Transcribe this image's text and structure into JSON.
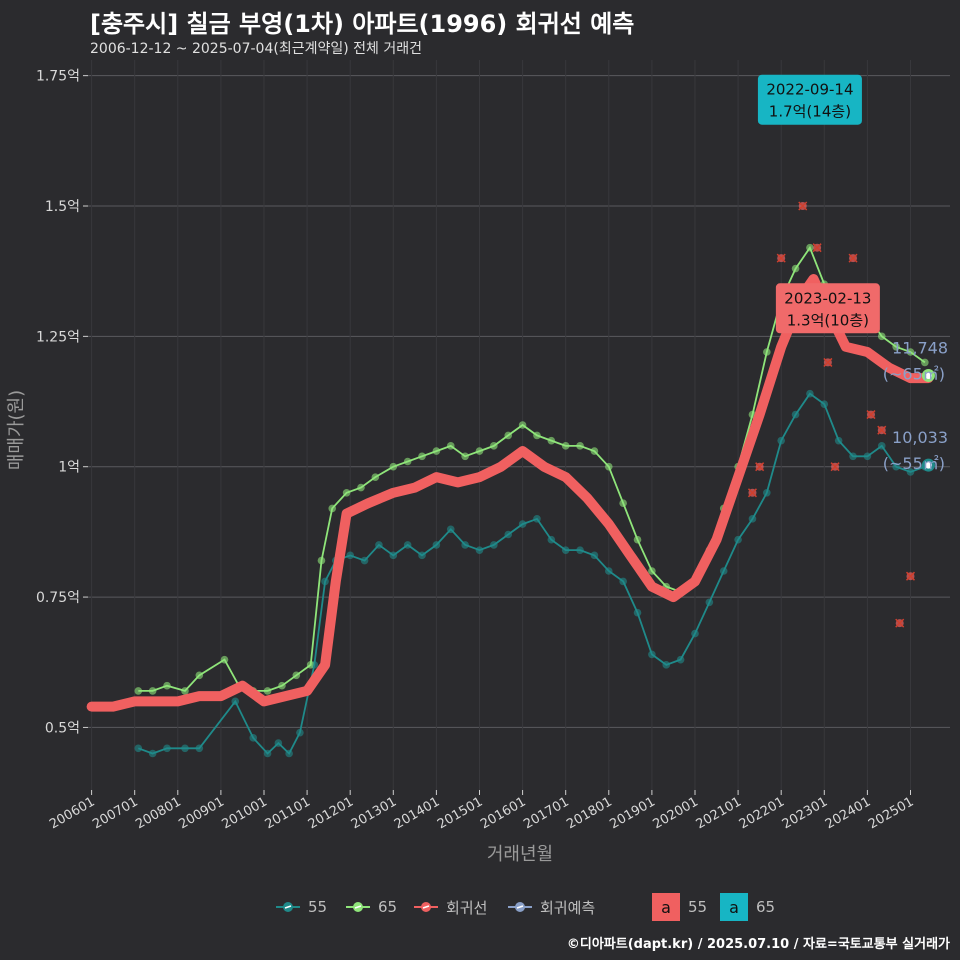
{
  "header": {
    "title": "[충주시] 칠금 부영(1차) 아파트(1996) 회귀선 예측",
    "subtitle": "2006-12-12 ~ 2025-07-04(최근계약일) 전체 거래건"
  },
  "footer": {
    "credit": "©디아파트(dapt.kr) / 2025.07.10 / 자료=국토교통부 실거래가"
  },
  "colors": {
    "s55": "#1f8a8a",
    "s65": "#8fe57a",
    "reg": "#f06060",
    "pred": "#8aa0c8",
    "cross": "#d0402e"
  },
  "chart_data": {
    "type": "scatter",
    "xlabel": "거래년월",
    "ylabel": "매매가(원)",
    "ylim": [
      0.38,
      1.78
    ],
    "yticks": [
      {
        "v": 0.5,
        "label": "0.5억"
      },
      {
        "v": 0.75,
        "label": "0.75억"
      },
      {
        "v": 1.0,
        "label": "1억"
      },
      {
        "v": 1.25,
        "label": "1.25억"
      },
      {
        "v": 1.5,
        "label": "1.5억"
      },
      {
        "v": 1.75,
        "label": "1.75억"
      }
    ],
    "xlim": [
      "2005-12-01",
      "2025-12-01"
    ],
    "xticks": [
      "200601",
      "200701",
      "200801",
      "200901",
      "201001",
      "201101",
      "201201",
      "201301",
      "201401",
      "201501",
      "201601",
      "201701",
      "201801",
      "201901",
      "202001",
      "202101",
      "202201",
      "202301",
      "202401",
      "202501"
    ],
    "series": [
      {
        "name": "55",
        "points": [
          [
            "2007-02",
            0.46
          ],
          [
            "2007-06",
            0.45
          ],
          [
            "2007-10",
            0.46
          ],
          [
            "2008-03",
            0.46
          ],
          [
            "2008-07",
            0.46
          ],
          [
            "2009-05",
            0.55
          ],
          [
            "2009-10",
            0.48
          ],
          [
            "2010-02",
            0.45
          ],
          [
            "2010-05",
            0.47
          ],
          [
            "2010-08",
            0.45
          ],
          [
            "2010-11",
            0.49
          ],
          [
            "2011-03",
            0.62
          ],
          [
            "2011-06",
            0.78
          ],
          [
            "2011-09",
            0.82
          ],
          [
            "2012-01",
            0.83
          ],
          [
            "2012-05",
            0.82
          ],
          [
            "2012-09",
            0.85
          ],
          [
            "2013-01",
            0.83
          ],
          [
            "2013-05",
            0.85
          ],
          [
            "2013-09",
            0.83
          ],
          [
            "2014-01",
            0.85
          ],
          [
            "2014-05",
            0.88
          ],
          [
            "2014-09",
            0.85
          ],
          [
            "2015-01",
            0.84
          ],
          [
            "2015-05",
            0.85
          ],
          [
            "2015-09",
            0.87
          ],
          [
            "2016-01",
            0.89
          ],
          [
            "2016-05",
            0.9
          ],
          [
            "2016-09",
            0.86
          ],
          [
            "2017-01",
            0.84
          ],
          [
            "2017-05",
            0.84
          ],
          [
            "2017-09",
            0.83
          ],
          [
            "2018-01",
            0.8
          ],
          [
            "2018-05",
            0.78
          ],
          [
            "2018-09",
            0.72
          ],
          [
            "2019-01",
            0.64
          ],
          [
            "2019-05",
            0.62
          ],
          [
            "2019-09",
            0.63
          ],
          [
            "2020-01",
            0.68
          ],
          [
            "2020-05",
            0.74
          ],
          [
            "2020-09",
            0.8
          ],
          [
            "2021-01",
            0.86
          ],
          [
            "2021-05",
            0.9
          ],
          [
            "2021-09",
            0.95
          ],
          [
            "2022-01",
            1.05
          ],
          [
            "2022-05",
            1.1
          ],
          [
            "2022-09",
            1.14
          ],
          [
            "2023-01",
            1.12
          ],
          [
            "2023-05",
            1.05
          ],
          [
            "2023-09",
            1.02
          ],
          [
            "2024-01",
            1.02
          ],
          [
            "2024-05",
            1.04
          ],
          [
            "2024-09",
            1.0
          ],
          [
            "2025-01",
            0.99
          ],
          [
            "2025-05",
            1.0
          ]
        ]
      },
      {
        "name": "65",
        "points": [
          [
            "2007-02",
            0.57
          ],
          [
            "2007-06",
            0.57
          ],
          [
            "2007-10",
            0.58
          ],
          [
            "2008-03",
            0.57
          ],
          [
            "2008-07",
            0.6
          ],
          [
            "2009-02",
            0.63
          ],
          [
            "2009-06",
            0.58
          ],
          [
            "2009-10",
            0.57
          ],
          [
            "2010-02",
            0.57
          ],
          [
            "2010-06",
            0.58
          ],
          [
            "2010-10",
            0.6
          ],
          [
            "2011-02",
            0.62
          ],
          [
            "2011-05",
            0.82
          ],
          [
            "2011-08",
            0.92
          ],
          [
            "2011-12",
            0.95
          ],
          [
            "2012-04",
            0.96
          ],
          [
            "2012-08",
            0.98
          ],
          [
            "2013-01",
            1.0
          ],
          [
            "2013-05",
            1.01
          ],
          [
            "2013-09",
            1.02
          ],
          [
            "2014-01",
            1.03
          ],
          [
            "2014-05",
            1.04
          ],
          [
            "2014-09",
            1.02
          ],
          [
            "2015-01",
            1.03
          ],
          [
            "2015-05",
            1.04
          ],
          [
            "2015-09",
            1.06
          ],
          [
            "2016-01",
            1.08
          ],
          [
            "2016-05",
            1.06
          ],
          [
            "2016-09",
            1.05
          ],
          [
            "2017-01",
            1.04
          ],
          [
            "2017-05",
            1.04
          ],
          [
            "2017-09",
            1.03
          ],
          [
            "2018-01",
            1.0
          ],
          [
            "2018-05",
            0.93
          ],
          [
            "2018-09",
            0.86
          ],
          [
            "2019-01",
            0.8
          ],
          [
            "2019-05",
            0.77
          ],
          [
            "2019-09",
            0.76
          ],
          [
            "2020-01",
            0.78
          ],
          [
            "2020-05",
            0.84
          ],
          [
            "2020-09",
            0.92
          ],
          [
            "2021-01",
            1.0
          ],
          [
            "2021-05",
            1.1
          ],
          [
            "2021-09",
            1.22
          ],
          [
            "2022-01",
            1.32
          ],
          [
            "2022-05",
            1.38
          ],
          [
            "2022-09",
            1.42
          ],
          [
            "2023-01",
            1.35
          ],
          [
            "2023-05",
            1.3
          ],
          [
            "2023-09",
            1.28
          ],
          [
            "2024-01",
            1.29
          ],
          [
            "2024-05",
            1.25
          ],
          [
            "2024-09",
            1.23
          ],
          [
            "2025-01",
            1.22
          ],
          [
            "2025-05",
            1.2
          ]
        ]
      },
      {
        "name": "회귀선",
        "points": [
          [
            "2006-01",
            0.54
          ],
          [
            "2006-07",
            0.54
          ],
          [
            "2007-01",
            0.55
          ],
          [
            "2007-07",
            0.55
          ],
          [
            "2008-01",
            0.55
          ],
          [
            "2008-07",
            0.56
          ],
          [
            "2009-01",
            0.56
          ],
          [
            "2009-07",
            0.58
          ],
          [
            "2010-01",
            0.55
          ],
          [
            "2010-07",
            0.56
          ],
          [
            "2011-01",
            0.57
          ],
          [
            "2011-06",
            0.62
          ],
          [
            "2011-09",
            0.78
          ],
          [
            "2011-12",
            0.91
          ],
          [
            "2012-06",
            0.93
          ],
          [
            "2013-01",
            0.95
          ],
          [
            "2013-07",
            0.96
          ],
          [
            "2014-01",
            0.98
          ],
          [
            "2014-07",
            0.97
          ],
          [
            "2015-01",
            0.98
          ],
          [
            "2015-07",
            1.0
          ],
          [
            "2016-01",
            1.03
          ],
          [
            "2016-07",
            1.0
          ],
          [
            "2017-01",
            0.98
          ],
          [
            "2017-07",
            0.94
          ],
          [
            "2018-01",
            0.89
          ],
          [
            "2018-07",
            0.83
          ],
          [
            "2019-01",
            0.77
          ],
          [
            "2019-07",
            0.75
          ],
          [
            "2020-01",
            0.78
          ],
          [
            "2020-07",
            0.86
          ],
          [
            "2021-01",
            0.98
          ],
          [
            "2021-07",
            1.1
          ],
          [
            "2022-01",
            1.23
          ],
          [
            "2022-07",
            1.33
          ],
          [
            "2022-10",
            1.36
          ],
          [
            "2023-02",
            1.3
          ],
          [
            "2023-07",
            1.23
          ],
          [
            "2024-01",
            1.22
          ],
          [
            "2024-07",
            1.19
          ],
          [
            "2025-01",
            1.17
          ],
          [
            "2025-06",
            1.17
          ]
        ]
      }
    ],
    "legend": [
      {
        "name": "55",
        "kind": "s55"
      },
      {
        "name": "65",
        "kind": "s65"
      },
      {
        "name": "회귀선",
        "kind": "reg"
      },
      {
        "name": "회귀예측",
        "kind": "pred"
      },
      {
        "name": "55",
        "kind": "box55",
        "box": "a"
      },
      {
        "name": "65",
        "kind": "box65",
        "box": "a"
      }
    ],
    "annotations": [
      {
        "date": "2022-09-14",
        "price": "1.7억(14층)",
        "x": "2022-09",
        "y": 1.7,
        "color": "#17b5c4"
      },
      {
        "date": "2023-02-13",
        "price": "1.3억(10층)",
        "x": "2023-02",
        "y": 1.3,
        "color": "#f06a6a"
      }
    ],
    "end_labels": [
      {
        "value": "11,748",
        "area": "(~65㎡)",
        "x": "2025-06",
        "y": 1.175,
        "color": "#8fe57a"
      },
      {
        "value": "10,033",
        "area": "(~55㎡)",
        "x": "2025-06",
        "y": 1.003,
        "color": "#1f8a8a"
      }
    ],
    "crosses": [
      [
        "2021-05",
        0.95
      ],
      [
        "2021-07",
        1.0
      ],
      [
        "2022-01",
        1.4
      ],
      [
        "2022-07",
        1.5
      ],
      [
        "2022-11",
        1.42
      ],
      [
        "2023-02",
        1.2
      ],
      [
        "2023-04",
        1.0
      ],
      [
        "2023-09",
        1.4
      ],
      [
        "2023-11",
        1.3
      ],
      [
        "2024-02",
        1.1
      ],
      [
        "2024-05",
        1.07
      ],
      [
        "2024-10",
        0.7
      ],
      [
        "2025-01",
        0.79
      ]
    ]
  }
}
